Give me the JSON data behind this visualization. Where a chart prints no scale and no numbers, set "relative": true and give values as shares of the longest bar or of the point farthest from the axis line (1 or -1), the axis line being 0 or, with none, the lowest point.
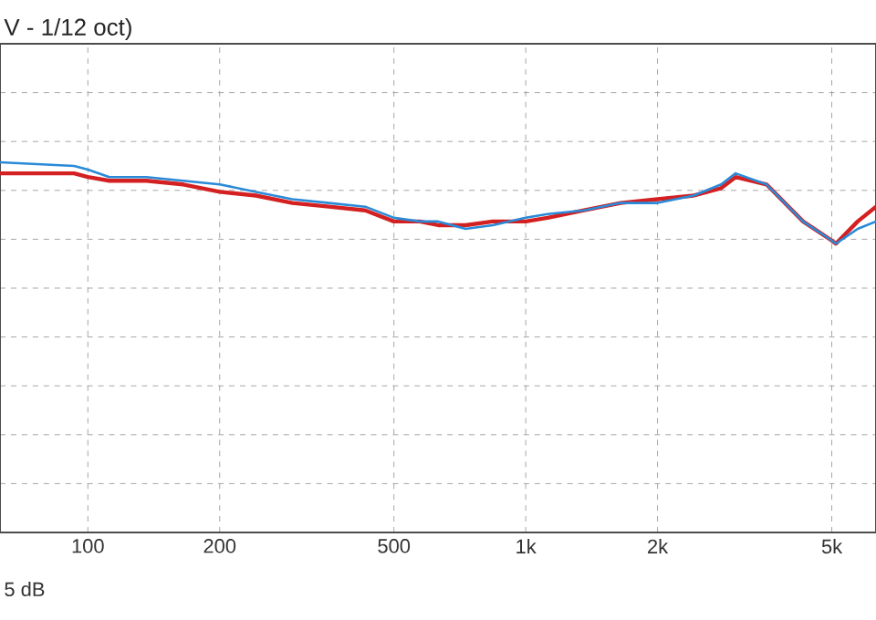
{
  "chart_data": {
    "type": "line",
    "title": "V - 1/12 oct)",
    "annotations": [
      "5 dB"
    ],
    "relative": true,
    "log": "x",
    "grid": true,
    "xlim": [
      63,
      6310
    ],
    "xticks": [
      100,
      200,
      500,
      {
        "value": 1000,
        "label": "1k"
      },
      {
        "value": 2000,
        "label": "2k"
      },
      {
        "value": 5000,
        "label": "5k"
      }
    ],
    "series": [
      {
        "color": "#d42020",
        "x": [
          63,
          93,
          100,
          112,
          136,
          165,
          200,
          242,
          293,
          355,
          430,
          500,
          573,
          631,
          729,
          841,
          1000,
          1122,
          1359,
          1647,
          2000,
          2418,
          2795,
          3015,
          3548,
          4300,
          4980,
          5110,
          5730,
          6310
        ],
        "values": [
          0.97,
          0.97,
          0.96,
          0.95,
          0.95,
          0.94,
          0.92,
          0.91,
          0.89,
          0.88,
          0.87,
          0.84,
          0.84,
          0.83,
          0.83,
          0.84,
          0.84,
          0.85,
          0.87,
          0.89,
          0.9,
          0.91,
          0.93,
          0.96,
          0.94,
          0.84,
          0.79,
          0.78,
          0.84,
          0.88
        ]
      },
      {
        "color": "#2a8ad8",
        "x": [
          63,
          93,
          100,
          112,
          136,
          165,
          200,
          242,
          293,
          355,
          430,
          500,
          573,
          631,
          729,
          841,
          1000,
          1122,
          1359,
          1647,
          2000,
          2418,
          2795,
          3015,
          3548,
          4300,
          4980,
          5110,
          5730,
          6310
        ],
        "values": [
          1.0,
          0.99,
          0.98,
          0.96,
          0.96,
          0.95,
          0.94,
          0.92,
          0.9,
          0.89,
          0.88,
          0.85,
          0.84,
          0.84,
          0.82,
          0.83,
          0.85,
          0.86,
          0.87,
          0.89,
          0.89,
          0.91,
          0.94,
          0.97,
          0.94,
          0.84,
          0.79,
          0.78,
          0.82,
          0.84
        ]
      }
    ]
  }
}
